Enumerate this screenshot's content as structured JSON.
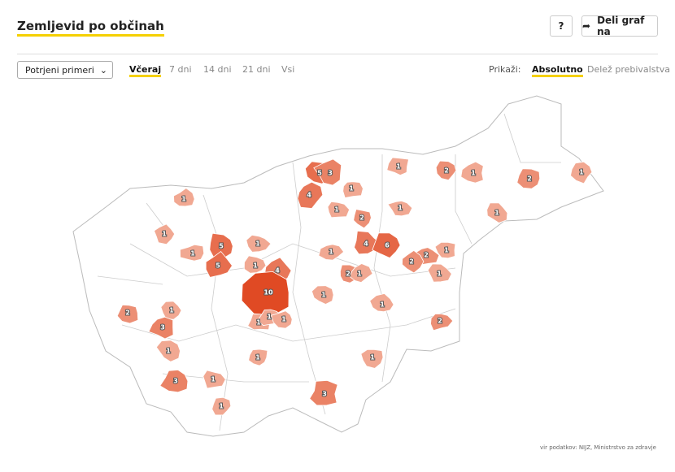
{
  "header": {
    "title": "Zemljevid po občinah",
    "help_button": "?",
    "share_button": "Deli graf na"
  },
  "controls": {
    "dropdown": "Potrjeni primeri",
    "periods": [
      "Včeraj",
      "7 dni",
      "14 dni",
      "21 dni",
      "Vsi"
    ],
    "active_period": 0,
    "show_label": "Prikaži:",
    "modes": [
      "Absolutno",
      "Delež prebivalstva"
    ],
    "active_mode": 0
  },
  "map": {
    "color_low": "#f1a892",
    "color_high": "#e04a24",
    "values": [
      1,
      1,
      1,
      5,
      5,
      1,
      1,
      4,
      10,
      5,
      3,
      4,
      1,
      1,
      2,
      1,
      1,
      2,
      1,
      2,
      1,
      1,
      4,
      6,
      1,
      2,
      1,
      1,
      2,
      2,
      1,
      1,
      1,
      2,
      2,
      1,
      3,
      1,
      1,
      1,
      1,
      1,
      1,
      3,
      1,
      1,
      3
    ]
  },
  "source": "vir podatkov: NIJZ, Ministrstvo za zdravje"
}
